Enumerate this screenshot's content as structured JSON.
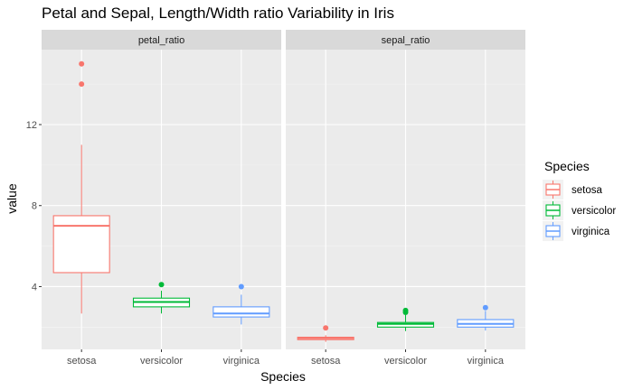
{
  "chart_data": {
    "type": "boxplot",
    "title": "Petal and Sepal, Length/Width ratio Variability in Iris",
    "xlabel": "Species",
    "ylabel": "value",
    "categories": [
      "setosa",
      "versicolor",
      "virginica"
    ],
    "ylim": [
      0.9,
      15.7
    ],
    "yticks": [
      4,
      8,
      12
    ],
    "grid": true,
    "legend": {
      "title": "Species",
      "placement": "right",
      "entries": [
        "setosa",
        "versicolor",
        "virginica"
      ]
    },
    "colors": {
      "setosa": "#F8766D",
      "versicolor": "#00BA38",
      "virginica": "#619CFF"
    },
    "facets": [
      {
        "label": "petal_ratio",
        "boxes": [
          {
            "species": "setosa",
            "whisker_low": 2.67,
            "q1": 4.69,
            "median": 7.0,
            "q3": 7.5,
            "whisker_high": 11.0,
            "outliers": [
              15.0,
              14.0
            ]
          },
          {
            "species": "versicolor",
            "whisker_low": 2.67,
            "q1": 3.0,
            "median": 3.24,
            "q3": 3.43,
            "whisker_high": 3.8,
            "outliers": [
              4.1
            ]
          },
          {
            "species": "virginica",
            "whisker_low": 2.13,
            "q1": 2.5,
            "median": 2.67,
            "q3": 3.0,
            "whisker_high": 3.6,
            "outliers": [
              4.0
            ]
          }
        ]
      },
      {
        "label": "sepal_ratio",
        "boxes": [
          {
            "species": "setosa",
            "whisker_low": 1.27,
            "q1": 1.38,
            "median": 1.46,
            "q3": 1.5,
            "whisker_high": 1.6,
            "outliers": [
              1.96
            ]
          },
          {
            "species": "versicolor",
            "whisker_low": 1.8,
            "q1": 2.0,
            "median": 2.16,
            "q3": 2.23,
            "whisker_high": 2.6,
            "outliers": [
              2.82,
              2.73
            ]
          },
          {
            "species": "virginica",
            "whisker_low": 1.83,
            "q1": 2.0,
            "median": 2.16,
            "q3": 2.37,
            "whisker_high": 2.8,
            "outliers": [
              2.96
            ]
          }
        ]
      }
    ]
  }
}
